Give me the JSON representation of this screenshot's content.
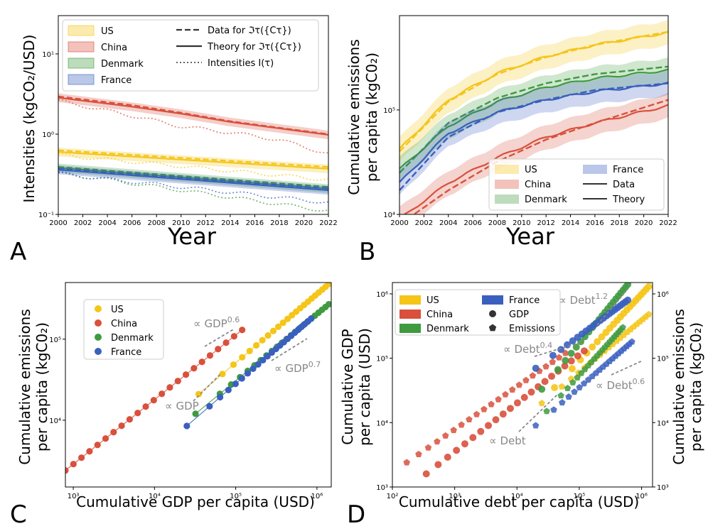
{
  "colors": {
    "US": "#f5c518",
    "China": "#d9503c",
    "Denmark": "#3f9a40",
    "France": "#3a5fbf"
  },
  "chart_data": [
    {
      "panel": "A",
      "type": "line",
      "ylabel": "Intensities (kgCO₂/USD)",
      "xlabel": "Year",
      "xlim": [
        2000,
        2022
      ],
      "ylim": [
        0.1,
        30
      ],
      "yscale": "log",
      "xticks": [
        "2000",
        "2002",
        "2004",
        "2006",
        "2008",
        "2010",
        "2012",
        "2014",
        "2016",
        "2018",
        "2020",
        "2022"
      ],
      "yticks": [
        "10⁻¹",
        "10⁰",
        "10¹"
      ],
      "legend": {
        "countries": [
          "US",
          "China",
          "Denmark",
          "France"
        ],
        "styles": [
          "Data for ℑτ({Cτ})",
          "Theory for ℑτ({Cτ})",
          "Intensities I(τ)"
        ]
      },
      "series": [
        {
          "name": "US",
          "years": [
            2000,
            2022
          ],
          "data": [
            0.63,
            0.39
          ],
          "theory": [
            0.6,
            0.37
          ],
          "intensity": [
            0.55,
            0.27
          ]
        },
        {
          "name": "China",
          "years": [
            2000,
            2006,
            2010,
            2014,
            2018,
            2022
          ],
          "data": [
            2.95,
            2.3,
            1.85,
            1.45,
            1.2,
            1.0
          ],
          "theory": [
            2.85,
            2.2,
            1.8,
            1.42,
            1.18,
            0.98
          ],
          "intensity": [
            2.6,
            1.7,
            1.25,
            1.05,
            0.85,
            0.57
          ]
        },
        {
          "name": "Denmark",
          "years": [
            2000,
            2022
          ],
          "data": [
            0.39,
            0.22
          ],
          "theory": [
            0.38,
            0.21
          ],
          "intensity": [
            0.33,
            0.11
          ]
        },
        {
          "name": "France",
          "years": [
            2000,
            2022
          ],
          "data": [
            0.37,
            0.21
          ],
          "theory": [
            0.36,
            0.2
          ],
          "intensity": [
            0.32,
            0.14
          ]
        }
      ]
    },
    {
      "panel": "B",
      "type": "line",
      "ylabel_line1": "Cumulative emissions",
      "ylabel_line2": "per capita (kgC0₂)",
      "xlabel": "Year",
      "xlim": [
        2000,
        2022
      ],
      "ylim": [
        10000,
        800000
      ],
      "yscale": "log",
      "xticks": [
        "2000",
        "2002",
        "2004",
        "2006",
        "2008",
        "2010",
        "2012",
        "2014",
        "2016",
        "2018",
        "2020",
        "2022"
      ],
      "yticks": [
        "10⁴",
        "10⁵"
      ],
      "legend": {
        "countries": [
          "US",
          "China",
          "Denmark",
          "France"
        ],
        "styles": [
          "Data",
          "Theory"
        ]
      },
      "series": [
        {
          "name": "US",
          "years": [
            2000,
            2004,
            2008,
            2012,
            2016,
            2022
          ],
          "data": [
            40000,
            120000,
            220000,
            320000,
            420000,
            560000
          ],
          "theory": [
            42000,
            125000,
            225000,
            325000,
            420000,
            550000
          ]
        },
        {
          "name": "China",
          "years": [
            2000,
            2004,
            2008,
            2012,
            2016,
            2022
          ],
          "data": [
            8000,
            17000,
            32000,
            52000,
            75000,
            125000
          ],
          "theory": [
            9000,
            20000,
            35000,
            55000,
            75000,
            110000
          ]
        },
        {
          "name": "Denmark",
          "years": [
            2000,
            2004,
            2008,
            2012,
            2016,
            2022
          ],
          "data": [
            25000,
            75000,
            130000,
            180000,
            220000,
            260000
          ],
          "theory": [
            27000,
            70000,
            120000,
            165000,
            200000,
            240000
          ]
        },
        {
          "name": "France",
          "years": [
            2000,
            2004,
            2008,
            2012,
            2016,
            2022
          ],
          "data": [
            17000,
            55000,
            95000,
            125000,
            155000,
            180000
          ],
          "theory": [
            20000,
            60000,
            95000,
            125000,
            150000,
            180000
          ]
        }
      ]
    },
    {
      "panel": "C",
      "type": "scatter",
      "ylabel_line1": "Cumulative emissions",
      "ylabel_line2": "per capita (kgC0₂)",
      "xlabel": "Cumulative GDP per capita (USD)",
      "xlim": [
        800,
        1500000
      ],
      "ylim": [
        1500,
        500000
      ],
      "xscale": "log",
      "yscale": "log",
      "xticks": [
        "10³",
        "10⁴",
        "10⁵",
        "10⁶"
      ],
      "yticks": [
        "10⁴",
        "10⁵"
      ],
      "legend": [
        "US",
        "China",
        "Denmark",
        "France"
      ],
      "annotations": [
        "∝ GDP^0.6",
        "∝ GDP^0.7",
        "∝ GDP"
      ],
      "series": [
        {
          "name": "US",
          "x_start": 35000,
          "x_end": 1400000,
          "y_start": 21000,
          "y_end": 480000
        },
        {
          "name": "China",
          "x_start": 800,
          "x_end": 120000,
          "y_start": 2400,
          "y_end": 130000
        },
        {
          "name": "Denmark",
          "x_start": 32000,
          "x_end": 1400000,
          "y_start": 12000,
          "y_end": 270000
        },
        {
          "name": "France",
          "x_start": 25000,
          "x_end": 850000,
          "y_start": 8500,
          "y_end": 180000
        }
      ]
    },
    {
      "panel": "D",
      "type": "scatter",
      "ylabel_left_line1": "Cumulative GDP",
      "ylabel_left_line2": "per capita (USD)",
      "ylabel_right_line1": "Cumulative emissions",
      "ylabel_right_line2": "per capita (kgC0₂)",
      "xlabel": "Cumulative debt per capita (USD)",
      "xlim": [
        100,
        1500000
      ],
      "ylim": [
        1000,
        1500000
      ],
      "xscale": "log",
      "yscale": "log",
      "xticks": [
        "10²",
        "10³",
        "10⁴",
        "10⁵",
        "10⁶"
      ],
      "yticks": [
        "10³",
        "10⁴",
        "10⁵",
        "10⁶"
      ],
      "yticks_right": [
        "10³",
        "10⁴",
        "10⁵",
        "10⁶"
      ],
      "legend": [
        "US",
        "China",
        "Denmark",
        "France",
        "GDP",
        "Emissions"
      ],
      "annotations": [
        "∝ Debt^1.2",
        "∝ Debt^0.4",
        "∝ Debt^0.6",
        "∝ Debt"
      ],
      "series": [
        {
          "name": "US",
          "gdp": [
            [
              40000,
              35000
            ],
            [
              1300000,
              1300000
            ]
          ],
          "emissions": [
            [
              25000,
              20000
            ],
            [
              1300000,
              480000
            ]
          ]
        },
        {
          "name": "China",
          "gdp": [
            [
              350,
              1600
            ],
            [
              120000,
              130000
            ]
          ],
          "emissions": [
            [
              170,
              2400
            ],
            [
              60000,
              120000
            ]
          ]
        },
        {
          "name": "Denmark",
          "gdp": [
            [
              25000,
              33000
            ],
            [
              600000,
              1400000
            ]
          ],
          "emissions": [
            [
              30000,
              15000
            ],
            [
              500000,
              300000
            ]
          ]
        },
        {
          "name": "France",
          "gdp": [
            [
              20000,
              70000
            ],
            [
              600000,
              800000
            ]
          ],
          "emissions": [
            [
              20000,
              9000
            ],
            [
              700000,
              180000
            ]
          ]
        }
      ]
    }
  ],
  "panel_labels": [
    "A",
    "B",
    "C",
    "D"
  ],
  "strings": {
    "year": "Year",
    "a_ylabel": "Intensities (kgCO₂/USD)",
    "b_ylabel1": "Cumulative emissions",
    "b_ylabel2": "per capita (kgC0₂)",
    "c_ylabel1": "Cumulative emissions",
    "c_ylabel2": "per capita (kgC0₂)",
    "c_xlabel": "Cumulative GDP per capita (USD)",
    "d_ylabel1": "Cumulative GDP",
    "d_ylabel2": "per capita (USD)",
    "d_ylabelr1": "Cumulative emissions",
    "d_ylabelr2": "per capita (kgC0₂)",
    "d_xlabel": "Cumulative debt per capita (USD)",
    "data_style": "Data for ℑτ({Cτ})",
    "theory_style": "Theory for ℑτ({Cτ})",
    "intens_style": "Intensities I(τ)",
    "data": "Data",
    "theory": "Theory",
    "gdp": "GDP",
    "emissions": "Emissions",
    "us": "US",
    "china": "China",
    "denmark": "Denmark",
    "france": "France",
    "ann_gdp06": "∝ GDP^0.6",
    "ann_gdp07": "∝ GDP^0.7",
    "ann_gdp": "∝ GDP",
    "ann_debt12": "∝ Debt^1.2",
    "ann_debt04": "∝ Debt^0.4",
    "ann_debt06": "∝ Debt^0.6",
    "ann_debt": "∝ Debt"
  }
}
